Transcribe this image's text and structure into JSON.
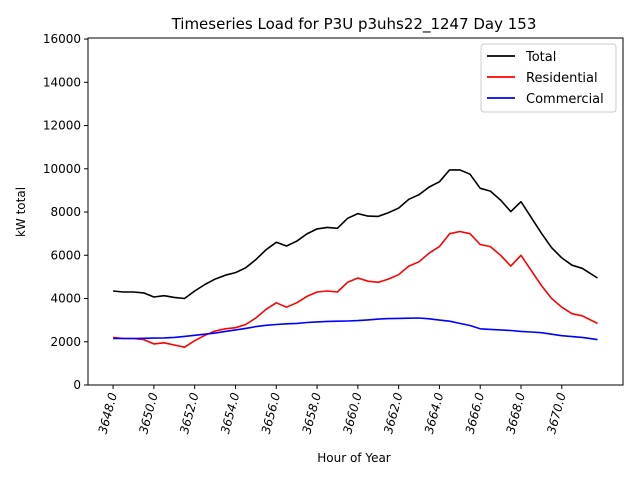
{
  "chart_data": {
    "type": "line",
    "title": "Timeseries Load for P3U p3uhs22_1247  Day 153",
    "xlabel": "Hour of Year",
    "ylabel": "kW total",
    "xlim": [
      3646.77,
      3673.0
    ],
    "ylim": [
      0,
      16050
    ],
    "xticks": [
      3648,
      3650,
      3652,
      3654,
      3656,
      3658,
      3660,
      3662,
      3664,
      3666,
      3668,
      3670
    ],
    "xtick_labels": [
      "3648.0",
      "3650.0",
      "3652.0",
      "3654.0",
      "3656.0",
      "3658.0",
      "3660.0",
      "3662.0",
      "3664.0",
      "3666.0",
      "3668.0",
      "3670.0"
    ],
    "yticks": [
      0,
      2000,
      4000,
      6000,
      8000,
      10000,
      12000,
      14000,
      16000
    ],
    "ytick_labels": [
      "0",
      "2000",
      "4000",
      "6000",
      "8000",
      "10000",
      "12000",
      "14000",
      "16000"
    ],
    "grid": false,
    "legend_position": "top-right",
    "x": [
      3648,
      3648.5,
      3649,
      3649.5,
      3650,
      3650.5,
      3651,
      3651.5,
      3652,
      3652.5,
      3653,
      3653.5,
      3654,
      3654.5,
      3655,
      3655.5,
      3656,
      3656.5,
      3657,
      3657.5,
      3658,
      3658.5,
      3659,
      3659.5,
      3660,
      3660.5,
      3661,
      3661.5,
      3662,
      3662.5,
      3663,
      3663.5,
      3664,
      3664.5,
      3665,
      3665.5,
      3666,
      3666.5,
      3667,
      3667.5,
      3668,
      3668.5,
      3669,
      3669.5,
      3670,
      3670.5,
      3671,
      3671.75
    ],
    "series": [
      {
        "name": "Total",
        "color": "#000000",
        "values": [
          4350,
          4300,
          4300,
          4260,
          4070,
          4130,
          4050,
          4000,
          4350,
          4650,
          4900,
          5080,
          5200,
          5420,
          5800,
          6260,
          6600,
          6430,
          6650,
          6990,
          7220,
          7290,
          7250,
          7710,
          7930,
          7810,
          7800,
          7970,
          8180,
          8590,
          8800,
          9160,
          9400,
          9950,
          9950,
          9750,
          9100,
          8970,
          8550,
          8020,
          8480,
          7750,
          7020,
          6350,
          5880,
          5540,
          5400,
          4950
        ]
      },
      {
        "name": "Residential",
        "color": "#ff0000",
        "values": [
          2200,
          2150,
          2150,
          2100,
          1900,
          1950,
          1850,
          1750,
          2050,
          2300,
          2500,
          2600,
          2650,
          2800,
          3100,
          3500,
          3800,
          3600,
          3800,
          4100,
          4300,
          4350,
          4300,
          4750,
          4950,
          4800,
          4750,
          4900,
          5100,
          5500,
          5700,
          6100,
          6400,
          7000,
          7100,
          7000,
          6500,
          6400,
          6000,
          5500,
          6000,
          5300,
          4600,
          4000,
          3600,
          3300,
          3200,
          2850
        ]
      },
      {
        "name": "Commercial",
        "color": "#0000ff",
        "values": [
          2150,
          2150,
          2150,
          2160,
          2170,
          2180,
          2200,
          2250,
          2300,
          2350,
          2400,
          2480,
          2550,
          2620,
          2700,
          2760,
          2800,
          2830,
          2850,
          2890,
          2920,
          2940,
          2950,
          2960,
          2980,
          3010,
          3050,
          3070,
          3080,
          3090,
          3100,
          3060,
          3000,
          2950,
          2850,
          2750,
          2600,
          2570,
          2550,
          2520,
          2480,
          2450,
          2420,
          2350,
          2280,
          2240,
          2200,
          2100
        ]
      }
    ]
  }
}
